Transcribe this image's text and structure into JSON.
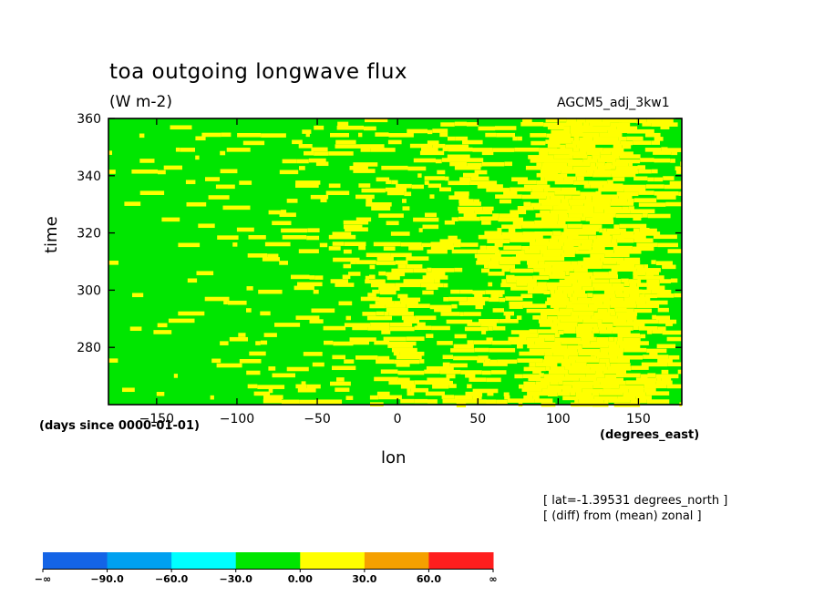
{
  "chart_data": {
    "type": "heatmap",
    "title": "toa outgoing longwave flux",
    "units": "(W m-2)",
    "run_label": "AGCM5_adj_3kw1",
    "xlabel": "lon",
    "x_units": "(degrees_east)",
    "ylabel": "time",
    "y_units": "(days since 0000-01-01)",
    "xlim": [
      -180,
      177
    ],
    "ylim": [
      260,
      360
    ],
    "x_ticks": [
      "-150",
      "-100",
      "-50",
      "0",
      "50",
      "100",
      "150"
    ],
    "y_ticks": [
      "280",
      "300",
      "320",
      "340",
      "360"
    ],
    "notes": [
      "[ lat=-1.39531 degrees_north ]",
      "[ (diff) from (mean) zonal ]"
    ],
    "colorbar": {
      "labels": [
        "-∞",
        "-90.0",
        "-60.0",
        "-30.0",
        "0.00",
        "30.0",
        "60.0",
        "∞"
      ],
      "colors": [
        "#1464e6",
        "#00a0f0",
        "#00ffff",
        "#00e600",
        "#ffff00",
        "#f5a000",
        "#ff1e1e"
      ]
    },
    "visible_levels": [
      {
        "range": "-30.0 to 0.00",
        "color": "#00e600"
      },
      {
        "range": "0.00 to 30.0",
        "color": "#ffff00"
      }
    ]
  }
}
